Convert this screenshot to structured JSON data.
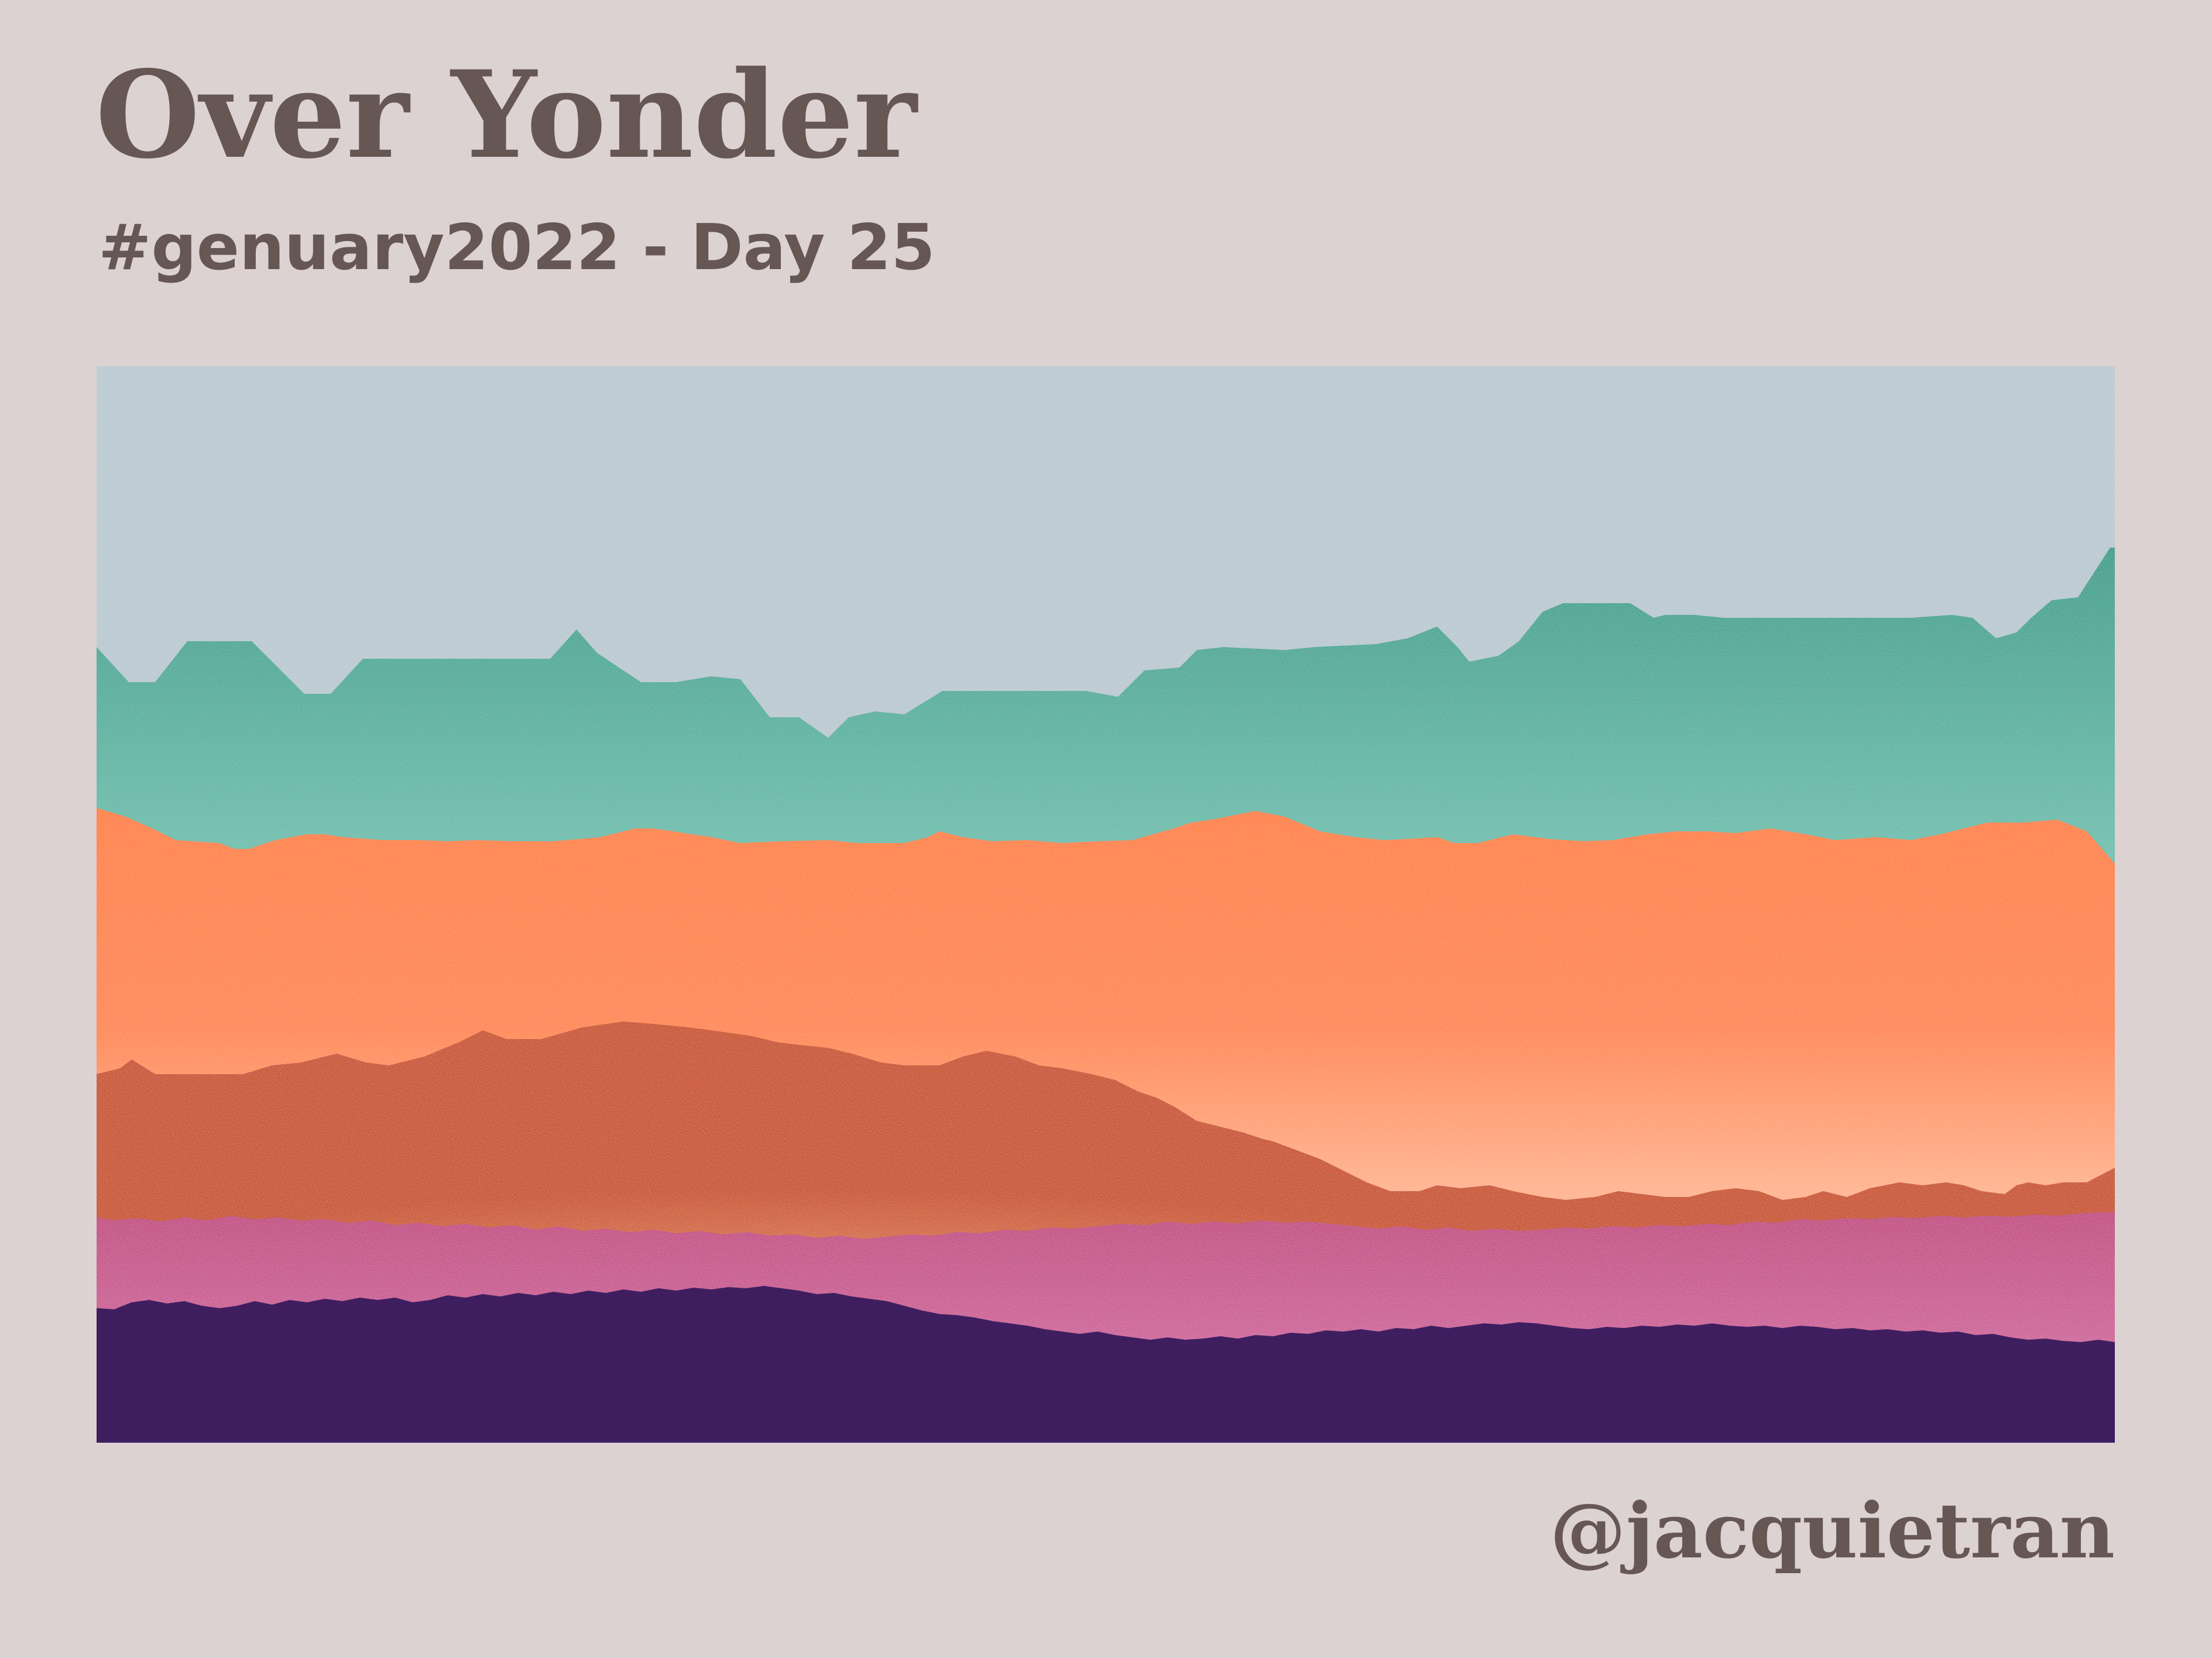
{
  "title": "Over Yonder",
  "subtitle": "#genuary2022 - Day 25",
  "handle": "@jacquietran",
  "colors": {
    "background": "#dcd2d1",
    "text": "#665755",
    "sky": "#b9c8d1",
    "teal": "#2f9f8a",
    "teal_light": "#c8ece4",
    "orange": "#ff7b36",
    "orange_light": "#ffb890",
    "rust": "#c94a12",
    "rust_light": "#e3896a",
    "magenta": "#c23f80",
    "magenta_light": "#d56aa6",
    "purple": "#3f1e60"
  }
}
